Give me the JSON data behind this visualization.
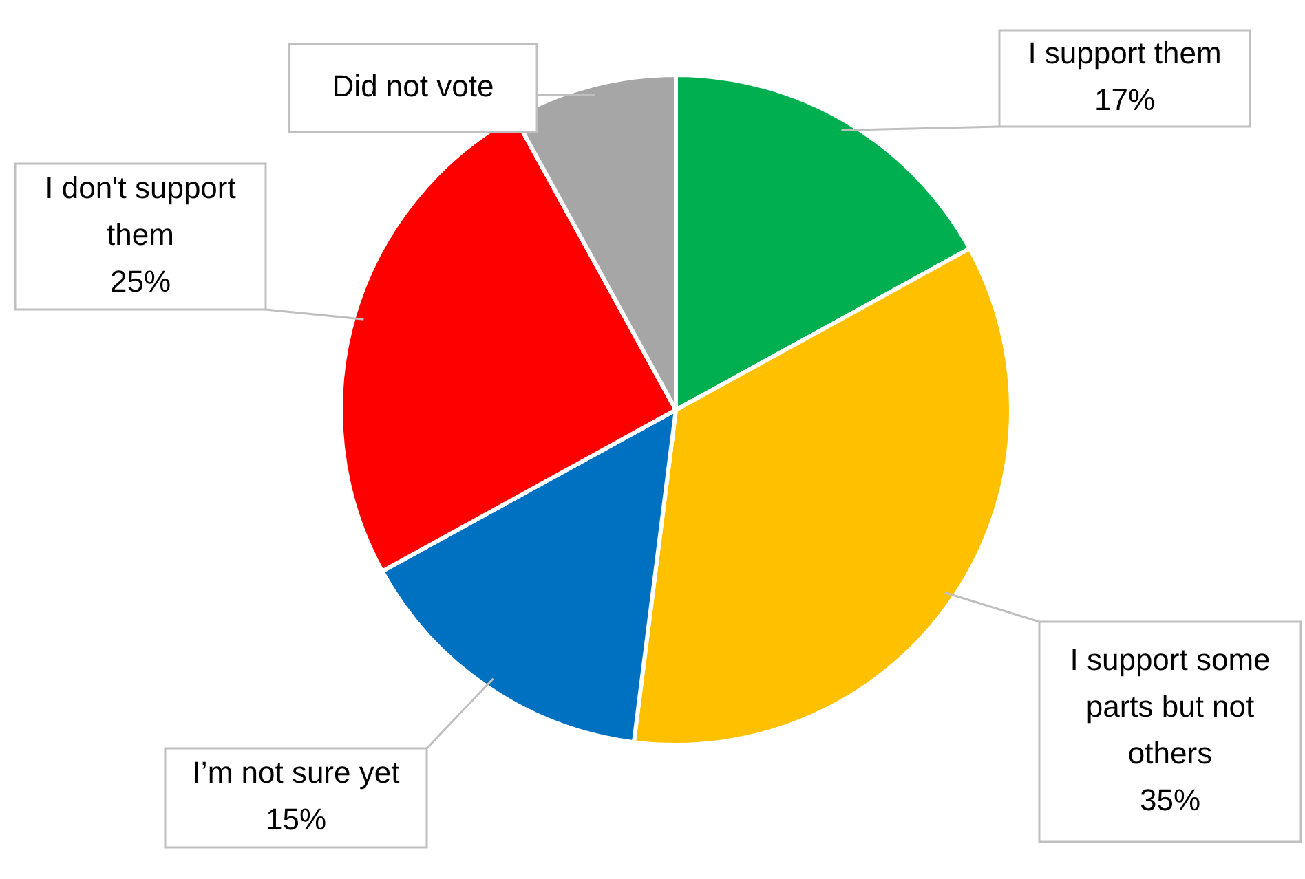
{
  "chart_data": {
    "type": "pie",
    "categories": [
      "I support them",
      "I support some parts but not others",
      "I’m not sure yet",
      "I don't support them",
      "Did not vote"
    ],
    "values": [
      17,
      35,
      15,
      25,
      8
    ],
    "colors": [
      "#00b050",
      "#ffc000",
      "#0070c0",
      "#ff0000",
      "#a6a6a6"
    ],
    "value_labels": [
      "17%",
      "35%",
      "15%",
      "25%",
      null
    ],
    "legend": false
  }
}
